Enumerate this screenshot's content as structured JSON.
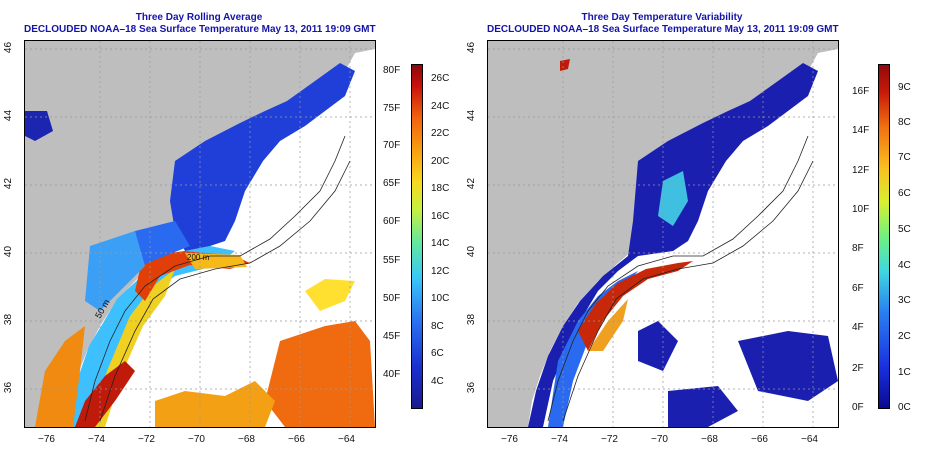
{
  "left_map": {
    "title_line1": "Three Day Rolling Average",
    "title_line2": "DECLOUDED NOAA–18 Sea Surface Temperature May 13, 2011 19:09 GMT",
    "x_ticks": [
      "−76",
      "−74",
      "−72",
      "−70",
      "−68",
      "−66",
      "−64"
    ],
    "y_ticks": [
      "46",
      "44",
      "42",
      "40",
      "38",
      "36"
    ],
    "contour_labels": [
      "50 m",
      "200 m"
    ],
    "colorbar_f": [
      "80F",
      "75F",
      "70F",
      "65F",
      "60F",
      "55F",
      "50F",
      "45F",
      "40F"
    ],
    "colorbar_c": [
      "26C",
      "24C",
      "22C",
      "20C",
      "18C",
      "16C",
      "14C",
      "12C",
      "10C",
      "8C",
      "6C",
      "4C"
    ]
  },
  "right_map": {
    "title_line1": "Three Day Temperature Variability",
    "title_line2": "DECLOUDED NOAA–18 Sea Surface Temperature May 13, 2011 19:09 GMT",
    "x_ticks": [
      "−76",
      "−74",
      "−72",
      "−70",
      "−68",
      "−66",
      "−64"
    ],
    "y_ticks": [
      "46",
      "44",
      "42",
      "40",
      "38",
      "36"
    ],
    "colorbar_f": [
      "16F",
      "14F",
      "12F",
      "10F",
      "8F",
      "6F",
      "4F",
      "2F",
      "0F"
    ],
    "colorbar_c": [
      "9C",
      "8C",
      "7C",
      "6C",
      "5C",
      "4C",
      "3C",
      "2C",
      "1C",
      "0C"
    ]
  },
  "colors": {
    "land": "#bebebe",
    "title": "#1414a8",
    "no_data": "#ffffff"
  }
}
